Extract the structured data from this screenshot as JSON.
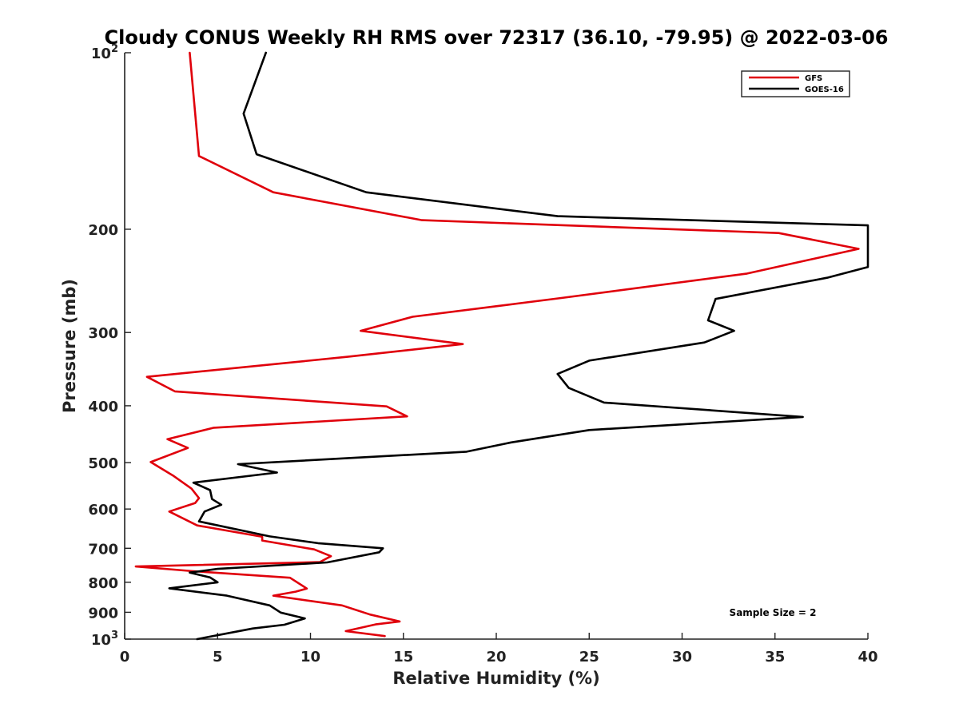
{
  "chart_data": {
    "type": "line",
    "title": "Cloudy CONUS Weekly RH RMS over 72317 (36.10, -79.95) @ 2022-03-06",
    "xlabel": "Relative Humidity (%)",
    "ylabel": "Pressure (mb)",
    "xlim": [
      0,
      40
    ],
    "ylim": [
      100,
      1000
    ],
    "y_scale": "log",
    "y_reversed": true,
    "x_ticks": [
      "0",
      "5",
      "10",
      "15",
      "20",
      "25",
      "30",
      "35",
      "40"
    ],
    "y_ticks": [
      {
        "value": 100,
        "base": "10",
        "exp": "2"
      },
      {
        "value": 200,
        "label": "200"
      },
      {
        "value": 300,
        "label": "300"
      },
      {
        "value": 400,
        "label": "400"
      },
      {
        "value": 500,
        "label": "500"
      },
      {
        "value": 600,
        "label": "600"
      },
      {
        "value": 700,
        "label": "700"
      },
      {
        "value": 800,
        "label": "800"
      },
      {
        "value": 900,
        "label": "900"
      },
      {
        "value": 1000,
        "base": "10",
        "exp": "3"
      }
    ],
    "grid": false,
    "legend_position": "top-right",
    "annotation": "Sample Size = 2",
    "series": [
      {
        "name": "GFS",
        "color": "#e0000b",
        "points": [
          [
            3.5,
            100
          ],
          [
            4.0,
            150
          ],
          [
            8.0,
            173
          ],
          [
            16.0,
            193
          ],
          [
            35.2,
            203
          ],
          [
            39.5,
            216
          ],
          [
            33.5,
            238
          ],
          [
            23.5,
            262
          ],
          [
            15.5,
            282
          ],
          [
            12.7,
            298
          ],
          [
            18.2,
            314
          ],
          [
            12.0,
            330
          ],
          [
            1.2,
            357
          ],
          [
            2.7,
            378
          ],
          [
            14.1,
            401
          ],
          [
            15.2,
            417
          ],
          [
            4.8,
            436
          ],
          [
            2.3,
            456
          ],
          [
            3.4,
            472
          ],
          [
            1.4,
            499
          ],
          [
            2.6,
            526
          ],
          [
            3.6,
            554
          ],
          [
            4.0,
            575
          ],
          [
            3.8,
            586
          ],
          [
            2.4,
            606
          ],
          [
            3.9,
            640
          ],
          [
            7.4,
            669
          ],
          [
            7.4,
            679
          ],
          [
            10.2,
            703
          ],
          [
            11.1,
            722
          ],
          [
            10.5,
            739
          ],
          [
            0.6,
            752
          ],
          [
            3.7,
            766
          ],
          [
            8.9,
            786
          ],
          [
            9.8,
            820
          ],
          [
            9.2,
            830
          ],
          [
            8.0,
            843
          ],
          [
            11.7,
            876
          ],
          [
            13.2,
            908
          ],
          [
            14.8,
            933
          ],
          [
            13.5,
            944
          ],
          [
            11.9,
            969
          ],
          [
            14.0,
            988
          ]
        ]
      },
      {
        "name": "GOES-16",
        "color": "#000000",
        "points": [
          [
            7.6,
            100
          ],
          [
            6.4,
            127
          ],
          [
            7.1,
            149
          ],
          [
            13.0,
            173
          ],
          [
            23.3,
            190
          ],
          [
            40.0,
            197
          ],
          [
            40.0,
            232
          ],
          [
            37.8,
            242
          ],
          [
            31.8,
            263
          ],
          [
            31.4,
            286
          ],
          [
            32.8,
            298
          ],
          [
            31.2,
            312
          ],
          [
            25.0,
            335
          ],
          [
            23.3,
            353
          ],
          [
            23.9,
            373
          ],
          [
            25.8,
            395
          ],
          [
            36.5,
            418
          ],
          [
            25.0,
            440
          ],
          [
            20.8,
            462
          ],
          [
            18.4,
            479
          ],
          [
            6.1,
            503
          ],
          [
            8.2,
            520
          ],
          [
            3.7,
            541
          ],
          [
            4.6,
            557
          ],
          [
            4.7,
            577
          ],
          [
            5.2,
            590
          ],
          [
            4.3,
            606
          ],
          [
            4.0,
            630
          ],
          [
            7.8,
            668
          ],
          [
            10.4,
            686
          ],
          [
            13.9,
            700
          ],
          [
            13.7,
            711
          ],
          [
            10.9,
            740
          ],
          [
            5.0,
            759
          ],
          [
            3.5,
            770
          ],
          [
            4.6,
            785
          ],
          [
            5.0,
            800
          ],
          [
            2.4,
            819
          ],
          [
            5.5,
            843
          ],
          [
            7.8,
            876
          ],
          [
            8.4,
            901
          ],
          [
            9.7,
            922
          ],
          [
            8.6,
            945
          ],
          [
            6.9,
            959
          ],
          [
            3.9,
            1000
          ]
        ]
      }
    ]
  }
}
